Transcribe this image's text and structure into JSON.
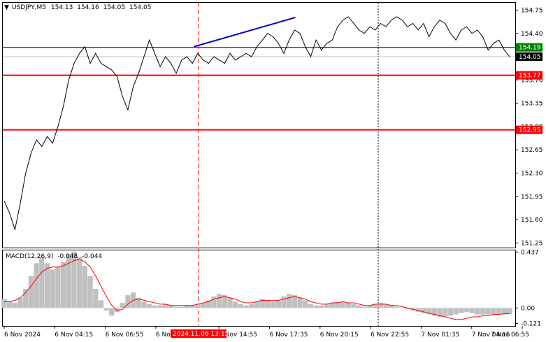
{
  "header": {
    "symbol": "USDJPY,M5",
    "open": "154.13",
    "high": "154.16",
    "low": "154.05",
    "close": "154.05"
  },
  "macd_header": {
    "label": "MACD(12,26,9)",
    "main": "-0.048",
    "signal": "-0.044"
  },
  "colors": {
    "price_line": "#000000",
    "support_line": "#ff0000",
    "resistance_line": "#008000",
    "trend_line": "#0000cc",
    "macd_hist": "#c0c0c0",
    "macd_signal": "#ff0000",
    "current_price_tag": "#000000"
  },
  "chart_data": [
    {
      "type": "line",
      "title": "USDJPY,M5",
      "ylim": [
        151.18,
        154.86
      ],
      "y_ticks": [
        "154.75",
        "154.40",
        "154.05",
        "153.70",
        "153.35",
        "153.00",
        "152.65",
        "152.30",
        "151.95",
        "151.60",
        "151.25"
      ],
      "x_ticks": [
        "6 Nov 2024",
        "6 Nov 04:15",
        "6 Nov 06:55",
        "6 Nov 09:35",
        "6 Nov 14:55",
        "6 Nov 17:35",
        "6 Nov 20:15",
        "6 Nov 22:55",
        "7 Nov 01:35",
        "7 Nov 04:15",
        "7 Nov 06:55"
      ],
      "highlight_label": "2024.11.06 13:15",
      "series": [
        {
          "values": [
            151.88,
            151.7,
            151.45,
            151.85,
            152.3,
            152.6,
            152.8,
            152.7,
            152.85,
            152.75,
            153.0,
            153.3,
            153.7,
            153.95,
            154.1,
            154.2,
            153.95,
            154.1,
            153.95,
            153.9,
            153.85,
            153.75,
            153.45,
            153.25,
            153.6,
            153.8,
            154.05,
            154.3,
            154.1,
            153.9,
            154.05,
            153.95,
            153.8,
            154.0,
            154.05,
            153.95,
            154.1,
            154.0,
            153.95,
            154.05,
            154.0,
            153.95,
            154.1,
            154.0,
            154.05,
            154.1,
            154.05,
            154.2,
            154.3,
            154.4,
            154.35,
            154.25,
            154.1,
            154.3,
            154.45,
            154.4,
            154.2,
            154.05,
            154.3,
            154.15,
            154.25,
            154.3,
            154.5,
            154.6,
            154.65,
            154.55,
            154.45,
            154.4,
            154.5,
            154.45,
            154.55,
            154.5,
            154.6,
            154.65,
            154.6,
            154.5,
            154.55,
            154.45,
            154.55,
            154.35,
            154.5,
            154.6,
            154.55,
            154.4,
            154.3,
            154.45,
            154.5,
            154.4,
            154.45,
            154.35,
            154.15,
            154.25,
            154.3,
            154.15,
            154.05
          ],
          "color": "#000000"
        }
      ],
      "horizontal_levels": [
        {
          "value": 154.19,
          "label": "154.19",
          "color": "#008000"
        },
        {
          "value": 153.77,
          "label": "153.77",
          "color": "#ff0000"
        },
        {
          "value": 152.95,
          "label": "152.95",
          "color": "#ff0000"
        }
      ],
      "current_price": {
        "value": 154.05,
        "label": "154.05"
      },
      "trend_line": {
        "from": [
          0.373,
          154.2
        ],
        "to": [
          0.571,
          154.64
        ]
      }
    },
    {
      "type": "bar",
      "title": "MACD(12,26,9)",
      "ylim": [
        -0.14,
        0.45
      ],
      "y_ticks": [
        "0.437",
        "0.00",
        "-0.121"
      ],
      "histogram": [
        0.07,
        0.05,
        0.04,
        0.08,
        0.15,
        0.25,
        0.35,
        0.4,
        0.35,
        0.3,
        0.32,
        0.36,
        0.42,
        0.44,
        0.4,
        0.33,
        0.25,
        0.15,
        0.06,
        -0.02,
        -0.06,
        -0.03,
        0.04,
        0.1,
        0.12,
        0.08,
        0.05,
        0.03,
        0.02,
        0.02,
        0.03,
        0.02,
        0.01,
        0.01,
        0.02,
        0.02,
        0.03,
        0.04,
        0.06,
        0.09,
        0.11,
        0.1,
        0.08,
        0.05,
        0.03,
        0.02,
        0.03,
        0.05,
        0.07,
        0.06,
        0.05,
        0.06,
        0.09,
        0.11,
        0.1,
        0.08,
        0.06,
        0.03,
        0.02,
        0.02,
        0.03,
        0.04,
        0.05,
        0.05,
        0.04,
        0.03,
        0.02,
        0.01,
        0.02,
        0.03,
        0.04,
        0.03,
        0.02,
        0.01,
        0.0,
        -0.01,
        -0.02,
        -0.03,
        -0.04,
        -0.05,
        -0.06,
        -0.07,
        -0.07,
        -0.06,
        -0.05,
        -0.04,
        -0.03,
        -0.04,
        -0.05,
        -0.05,
        -0.05,
        -0.05,
        -0.05,
        -0.05,
        -0.048
      ],
      "signal": [
        0.05,
        0.05,
        0.06,
        0.08,
        0.12,
        0.17,
        0.23,
        0.28,
        0.31,
        0.32,
        0.32,
        0.33,
        0.35,
        0.37,
        0.38,
        0.36,
        0.32,
        0.25,
        0.17,
        0.09,
        0.02,
        -0.02,
        -0.01,
        0.03,
        0.06,
        0.07,
        0.06,
        0.05,
        0.04,
        0.03,
        0.03,
        0.02,
        0.02,
        0.02,
        0.02,
        0.02,
        0.03,
        0.04,
        0.05,
        0.07,
        0.08,
        0.09,
        0.08,
        0.07,
        0.05,
        0.04,
        0.04,
        0.05,
        0.06,
        0.06,
        0.06,
        0.06,
        0.07,
        0.08,
        0.09,
        0.08,
        0.07,
        0.05,
        0.04,
        0.03,
        0.03,
        0.04,
        0.04,
        0.05,
        0.04,
        0.04,
        0.03,
        0.02,
        0.02,
        0.03,
        0.03,
        0.03,
        0.02,
        0.02,
        0.01,
        0.0,
        -0.01,
        -0.02,
        -0.03,
        -0.04,
        -0.05,
        -0.06,
        -0.07,
        -0.08,
        -0.09,
        -0.09,
        -0.08,
        -0.07,
        -0.07,
        -0.06,
        -0.06,
        -0.05,
        -0.05,
        -0.045,
        -0.044
      ],
      "main_value": -0.048,
      "signal_value": -0.044
    }
  ]
}
